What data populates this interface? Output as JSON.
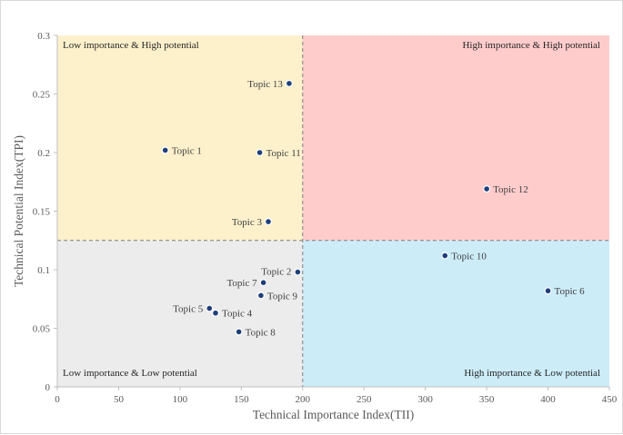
{
  "chart_data": {
    "type": "scatter",
    "title": "",
    "xlabel": "Technical Importance Index(TII)",
    "ylabel": "Technical Potential Index(TPI)",
    "xlim": [
      0,
      450
    ],
    "ylim": [
      0,
      0.3
    ],
    "xticks": [
      "0",
      "50",
      "100",
      "150",
      "200",
      "250",
      "300",
      "350",
      "400",
      "450"
    ],
    "yticks": [
      "0",
      "0.05",
      "0.1",
      "0.15",
      "0.2",
      "0.25",
      "0.3"
    ],
    "x_divider": 200,
    "y_divider": 0.125,
    "quadrants": {
      "top_left": {
        "label": "Low importance & High potential",
        "color": "#fdf1cc"
      },
      "top_right": {
        "label": "High importance & High potential",
        "color": "#ffcccc"
      },
      "bottom_left": {
        "label": "Low importance & Low potential",
        "color": "#ececec"
      },
      "bottom_right": {
        "label": "High importance & Low potential",
        "color": "#ccecf8"
      }
    },
    "points": [
      {
        "name": "Topic 1",
        "x": 88,
        "y": 0.202
      },
      {
        "name": "Topic 2",
        "x": 196,
        "y": 0.098
      },
      {
        "name": "Topic 3",
        "x": 172,
        "y": 0.141
      },
      {
        "name": "Topic 4",
        "x": 129,
        "y": 0.063
      },
      {
        "name": "Topic 5",
        "x": 124,
        "y": 0.067
      },
      {
        "name": "Topic 6",
        "x": 400,
        "y": 0.082
      },
      {
        "name": "Topic 7",
        "x": 168,
        "y": 0.089
      },
      {
        "name": "Topic 8",
        "x": 148,
        "y": 0.047
      },
      {
        "name": "Topic 9",
        "x": 166,
        "y": 0.078
      },
      {
        "name": "Topic 10",
        "x": 316,
        "y": 0.112
      },
      {
        "name": "Topic 11",
        "x": 165,
        "y": 0.2
      },
      {
        "name": "Topic 12",
        "x": 350,
        "y": 0.169
      },
      {
        "name": "Topic 13",
        "x": 189,
        "y": 0.259
      }
    ],
    "marker_color": "#1f3f7a"
  }
}
